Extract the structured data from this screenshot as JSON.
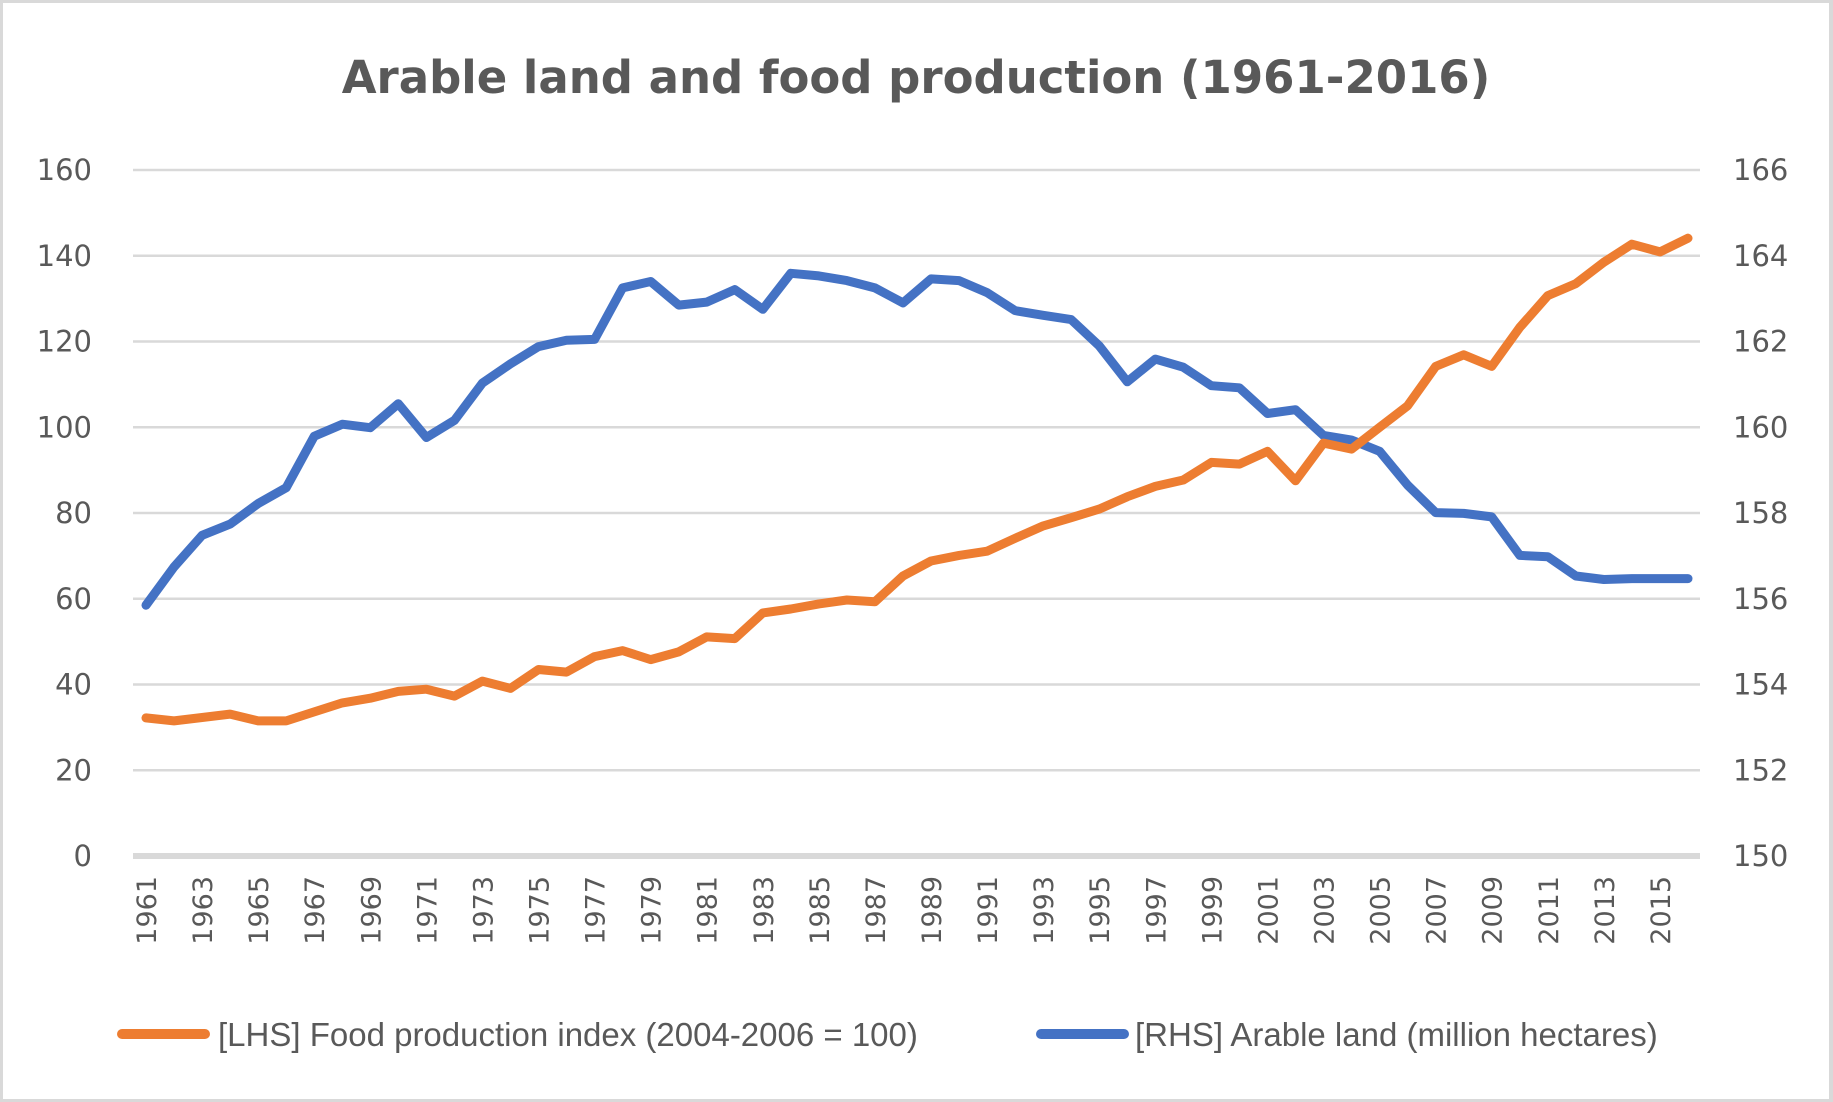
{
  "chart_data": {
    "type": "line",
    "title": "Arable land and food production (1961-2016)",
    "xlabel": "",
    "ylabel_left": "",
    "ylabel_right": "",
    "x": [
      1961,
      1962,
      1963,
      1964,
      1965,
      1966,
      1967,
      1968,
      1969,
      1970,
      1971,
      1972,
      1973,
      1974,
      1975,
      1976,
      1977,
      1978,
      1979,
      1980,
      1981,
      1982,
      1983,
      1984,
      1985,
      1986,
      1987,
      1988,
      1989,
      1990,
      1991,
      1992,
      1993,
      1994,
      1995,
      1996,
      1997,
      1998,
      1999,
      2000,
      2001,
      2002,
      2003,
      2004,
      2005,
      2006,
      2007,
      2008,
      2009,
      2010,
      2011,
      2012,
      2013,
      2014,
      2015,
      2016
    ],
    "x_tick_labels": [
      "1961",
      "1963",
      "1965",
      "1967",
      "1969",
      "1971",
      "1973",
      "1975",
      "1977",
      "1979",
      "1981",
      "1983",
      "1985",
      "1987",
      "1989",
      "1991",
      "1993",
      "1995",
      "1997",
      "1999",
      "2001",
      "2003",
      "2005",
      "2007",
      "2009",
      "2011",
      "2013",
      "2015"
    ],
    "y_left": {
      "range": [
        0,
        160
      ],
      "ticks": [
        "0",
        "20",
        "40",
        "60",
        "80",
        "100",
        "120",
        "140",
        "160"
      ]
    },
    "y_right": {
      "range": [
        150,
        166
      ],
      "ticks": [
        "150",
        "152",
        "154",
        "156",
        "158",
        "160",
        "162",
        "164",
        "166"
      ]
    },
    "grid": true,
    "legend_position": "bottom",
    "series": [
      {
        "name": "[LHS] Food production index (2004-2006 = 100)",
        "axis": "left",
        "color": "#ED7D31",
        "values": [
          32.2,
          31.5,
          32.3,
          33.1,
          31.5,
          31.5,
          33.6,
          35.7,
          36.8,
          38.4,
          38.9,
          37.3,
          40.8,
          39.1,
          43.5,
          42.9,
          46.5,
          47.9,
          45.8,
          47.6,
          51.1,
          50.7,
          56.7,
          57.6,
          58.8,
          59.7,
          59.3,
          65.3,
          68.8,
          70.1,
          71.1,
          74.1,
          77.0,
          78.9,
          80.9,
          83.8,
          86.2,
          87.7,
          91.8,
          91.4,
          94.4,
          87.5,
          96.3,
          94.9,
          100.0,
          105.0,
          114.2,
          116.9,
          114.2,
          123.3,
          130.7,
          133.5,
          138.5,
          142.7,
          140.9,
          144.1
        ]
      },
      {
        "name": "[RHS] Arable land (million hectares)",
        "axis": "right",
        "color": "#4472C4",
        "values": [
          155.85,
          156.74,
          157.48,
          157.74,
          158.22,
          158.59,
          159.79,
          160.07,
          159.99,
          160.55,
          159.76,
          160.16,
          161.03,
          161.48,
          161.88,
          162.03,
          162.05,
          163.25,
          163.4,
          162.85,
          162.92,
          163.21,
          162.75,
          163.59,
          163.53,
          163.42,
          163.25,
          162.9,
          163.46,
          163.42,
          163.14,
          162.72,
          162.61,
          162.51,
          161.9,
          161.06,
          161.59,
          161.4,
          160.97,
          160.92,
          160.32,
          160.41,
          159.81,
          159.7,
          159.44,
          158.65,
          158.01,
          157.99,
          157.91,
          157.01,
          156.98,
          156.53,
          156.45,
          156.47,
          156.47,
          156.47
        ]
      }
    ]
  }
}
